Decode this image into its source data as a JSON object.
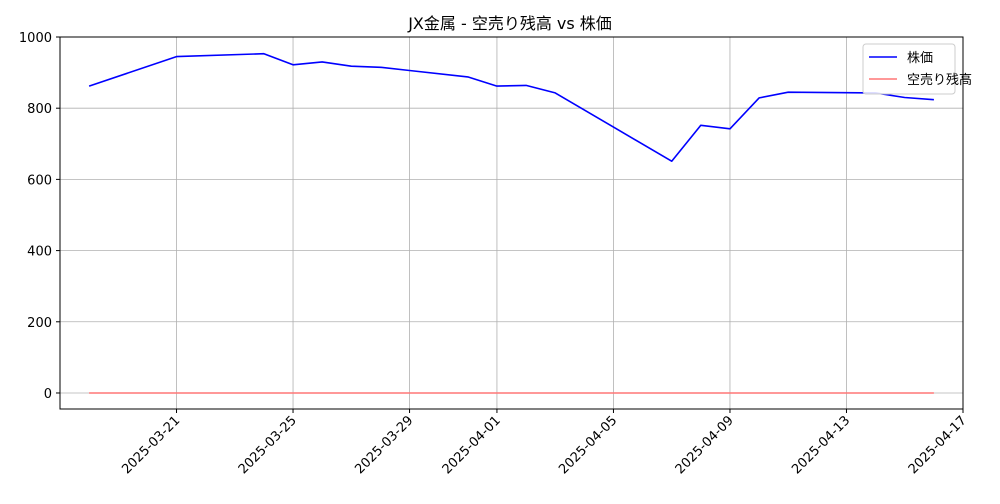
{
  "chart_data": {
    "type": "line",
    "title": "JX金属 - 空売り残高 vs 株価",
    "xlabel": "",
    "ylabel": "",
    "ylim": [
      -45,
      1000
    ],
    "xlim": [
      "2025-03-17",
      "2025-04-17"
    ],
    "grid": true,
    "legend_position": "top-right",
    "x_ticks": [
      "2025-03-21",
      "2025-03-25",
      "2025-03-29",
      "2025-04-01",
      "2025-04-05",
      "2025-04-09",
      "2025-04-13",
      "2025-04-17"
    ],
    "y_ticks": [
      0,
      200,
      400,
      600,
      800,
      1000
    ],
    "series": [
      {
        "name": "株価",
        "color": "#0000ff",
        "x": [
          "2025-03-18",
          "2025-03-21",
          "2025-03-24",
          "2025-03-25",
          "2025-03-26",
          "2025-03-27",
          "2025-03-28",
          "2025-03-29",
          "2025-03-31",
          "2025-04-01",
          "2025-04-02",
          "2025-04-03",
          "2025-04-07",
          "2025-04-08",
          "2025-04-09",
          "2025-04-10",
          "2025-04-11",
          "2025-04-14",
          "2025-04-15",
          "2025-04-16"
        ],
        "values": [
          862,
          945,
          953,
          922,
          930,
          918,
          915,
          906,
          888,
          862,
          864,
          843,
          651,
          752,
          742,
          829,
          845,
          843,
          830,
          824
        ]
      },
      {
        "name": "空売り残高",
        "color": "#ff7777",
        "x": [
          "2025-03-18",
          "2025-04-16"
        ],
        "values": [
          0,
          0
        ]
      }
    ]
  }
}
